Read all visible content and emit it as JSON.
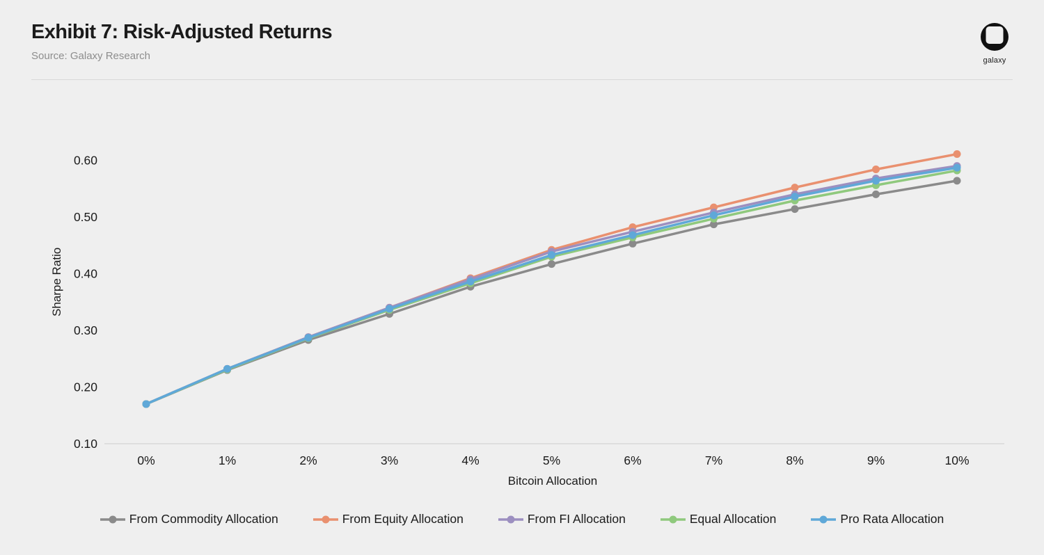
{
  "header": {
    "title": "Exhibit 7: Risk-Adjusted Returns",
    "source": "Source: Galaxy Research",
    "logo_text": "galaxy"
  },
  "colors": {
    "background": "#efefef",
    "text_primary": "#1b1b1b",
    "text_secondary": "#8d8d8d",
    "axis_line": "#d9d9d9",
    "logo": "#111111"
  },
  "chart_data": {
    "type": "line",
    "title": "Exhibit 7: Risk-Adjusted Returns",
    "xlabel": "Bitcoin Allocation",
    "ylabel": "Sharpe Ratio",
    "x_tick_labels": [
      "0%",
      "1%",
      "2%",
      "3%",
      "4%",
      "5%",
      "6%",
      "7%",
      "8%",
      "9%",
      "10%"
    ],
    "x_values_pct": [
      0,
      1,
      2,
      3,
      4,
      5,
      6,
      7,
      8,
      9,
      10
    ],
    "y_ticks": [
      "0.10",
      "0.20",
      "0.30",
      "0.40",
      "0.50",
      "0.60"
    ],
    "ylim": [
      0.1,
      0.65
    ],
    "grid": false,
    "legend_position": "bottom",
    "series": [
      {
        "name": "From Commodity Allocation",
        "color": "#8a8a8a",
        "values": [
          0.17,
          0.23,
          0.283,
          0.329,
          0.377,
          0.417,
          0.453,
          0.487,
          0.514,
          0.54,
          0.564
        ]
      },
      {
        "name": "From Equity Allocation",
        "color": "#e9906f",
        "values": [
          0.17,
          0.232,
          0.288,
          0.34,
          0.392,
          0.442,
          0.482,
          0.517,
          0.552,
          0.584,
          0.611
        ]
      },
      {
        "name": "From FI Allocation",
        "color": "#9c8fc0",
        "values": [
          0.17,
          0.232,
          0.288,
          0.34,
          0.39,
          0.439,
          0.474,
          0.508,
          0.54,
          0.568,
          0.59
        ]
      },
      {
        "name": "Equal Allocation",
        "color": "#8fc97d",
        "values": [
          0.17,
          0.231,
          0.286,
          0.336,
          0.383,
          0.43,
          0.464,
          0.497,
          0.529,
          0.556,
          0.582
        ]
      },
      {
        "name": "Pro Rata Allocation",
        "color": "#5fa8d8",
        "values": [
          0.17,
          0.232,
          0.287,
          0.338,
          0.386,
          0.433,
          0.468,
          0.503,
          0.536,
          0.564,
          0.587
        ]
      }
    ]
  }
}
